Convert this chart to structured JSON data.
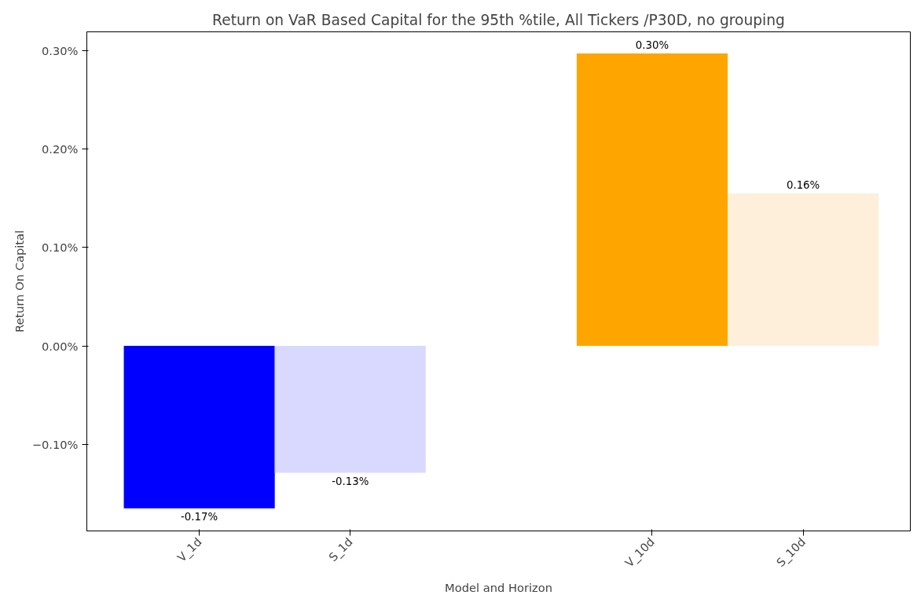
{
  "chart_data": {
    "type": "bar",
    "title": "Return on VaR Based Capital for the 95th %tile, All Tickers /P30D, no grouping",
    "xlabel": "Model and Horizon",
    "ylabel": "Return On Capital",
    "categories": [
      "V_1d",
      "S_1d",
      null,
      "V_10d",
      "S_10d"
    ],
    "values": [
      -0.165,
      -0.129,
      null,
      0.297,
      0.155
    ],
    "colors": [
      "#0000ff",
      "#d9d9ff",
      "#ffffff",
      "#ffa500",
      "#feefdb"
    ],
    "value_labels": [
      "-0.17%",
      "-0.13%",
      null,
      "0.30%",
      "0.16%"
    ],
    "ylim": [
      -0.188,
      0.319
    ],
    "yticks": [
      {
        "value": -0.1,
        "label": "−0.10%"
      },
      {
        "value": 0,
        "label": "0.00%"
      },
      {
        "value": 0.1,
        "label": "0.10%"
      },
      {
        "value": 0.2,
        "label": "0.20%"
      },
      {
        "value": 0.3,
        "label": "0.30%"
      }
    ],
    "grid": false
  }
}
